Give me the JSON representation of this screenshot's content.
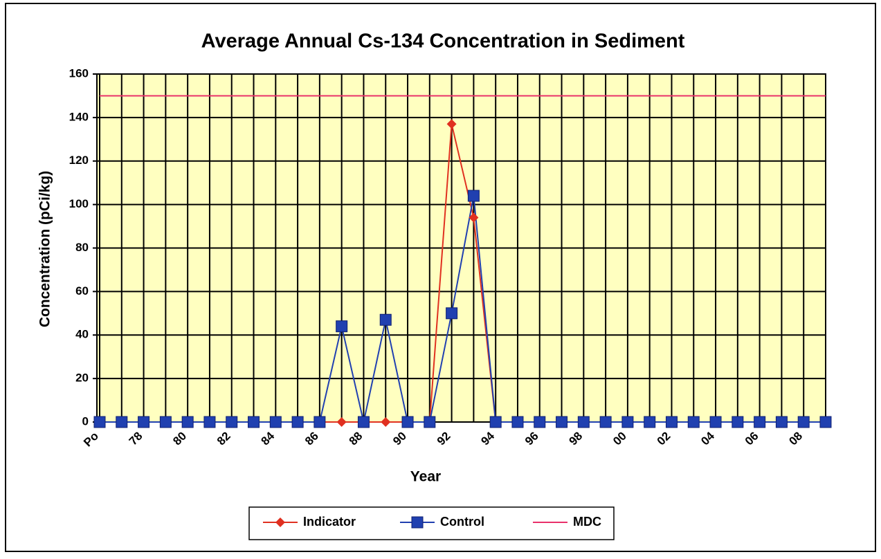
{
  "chart_data": {
    "type": "line",
    "title": "Average Annual Cs-134 Concentration in Sediment",
    "x_label": "Year",
    "y_label": "Concentration (pCi/kg)",
    "categories": [
      "Po",
      null,
      "78",
      null,
      "80",
      null,
      "82",
      null,
      "84",
      null,
      "86",
      null,
      "88",
      null,
      "90",
      null,
      "92",
      null,
      "94",
      null,
      "96",
      null,
      "98",
      null,
      "00",
      null,
      "02",
      null,
      "04",
      null,
      "06",
      null,
      "08",
      null
    ],
    "series": [
      {
        "name": "Indicator",
        "color": "#e03020",
        "marker": "diamond",
        "values": [
          0,
          0,
          0,
          0,
          0,
          0,
          0,
          0,
          0,
          0,
          0,
          0,
          0,
          0,
          0,
          0,
          137,
          94,
          0,
          0,
          0,
          0,
          0,
          0,
          0,
          0,
          0,
          0,
          0,
          0,
          0,
          0,
          0,
          0
        ]
      },
      {
        "name": "Control",
        "color": "#2040b0",
        "marker": "square",
        "values": [
          0,
          0,
          0,
          0,
          0,
          0,
          0,
          0,
          0,
          0,
          0,
          44,
          0,
          47,
          0,
          0,
          50,
          104,
          0,
          0,
          0,
          0,
          0,
          0,
          0,
          0,
          0,
          0,
          0,
          0,
          0,
          0,
          0,
          0
        ]
      },
      {
        "name": "MDC",
        "color": "#e8306a",
        "marker": "none",
        "values": [
          150,
          150,
          150,
          150,
          150,
          150,
          150,
          150,
          150,
          150,
          150,
          150,
          150,
          150,
          150,
          150,
          150,
          150,
          150,
          150,
          150,
          150,
          150,
          150,
          150,
          150,
          150,
          150,
          150,
          150,
          150,
          150,
          150,
          150
        ]
      }
    ],
    "ylim": [
      0,
      160
    ],
    "yticks": [
      0,
      20,
      40,
      60,
      80,
      100,
      120,
      140,
      160
    ],
    "grid": true,
    "legend": "bottom"
  }
}
